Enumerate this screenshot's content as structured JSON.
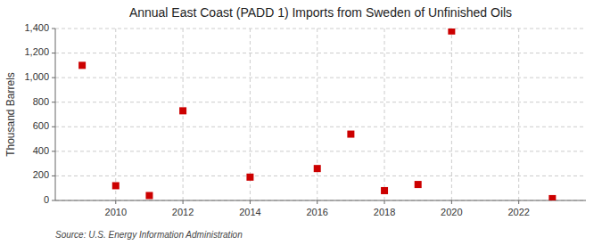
{
  "chart_data": {
    "type": "scatter",
    "title": "Annual East Coast (PADD 1) Imports from Sweden of Unfinished Oils",
    "y_label": "Thousand Barrels",
    "annotations": [
      "Source: U.S. Energy Information Administration"
    ],
    "x": [
      2009,
      2010,
      2011,
      2012,
      2014,
      2016,
      2017,
      2018,
      2019,
      2020,
      2023
    ],
    "values": [
      1100,
      120,
      40,
      730,
      190,
      260,
      540,
      80,
      130,
      1380,
      15
    ],
    "color": "#cc0000",
    "marker": "square",
    "xlim": [
      2008.2,
      2024.0
    ],
    "ylim": [
      0,
      1400
    ],
    "xticks": [
      2010,
      2012,
      2014,
      2016,
      2018,
      2020,
      2022
    ],
    "yticks": [
      0,
      200,
      400,
      600,
      800,
      {
        "value": 1000,
        "label": "1,000"
      },
      {
        "value": 1200,
        "label": "1,200"
      },
      {
        "value": 1400,
        "label": "1,400"
      }
    ],
    "grid": true
  }
}
